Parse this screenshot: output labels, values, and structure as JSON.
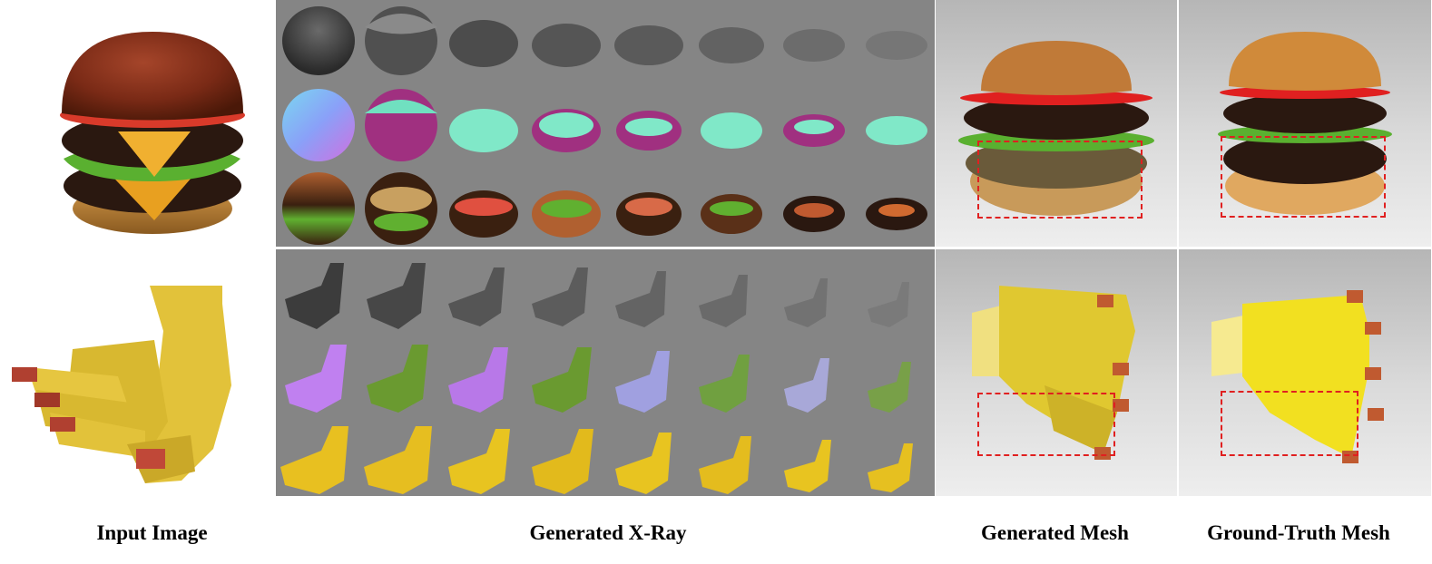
{
  "captions": {
    "input_image": "Input Image",
    "generated_xray": "Generated X-Ray",
    "generated_mesh": "Generated Mesh",
    "ground_truth_mesh": "Ground-Truth Mesh"
  },
  "colors": {
    "xray_background": "#858585",
    "highlight_box": "#e02020",
    "caption_text": "#000000"
  },
  "xray_rows": [
    "depth",
    "normal",
    "color"
  ],
  "xray_layers_per_row": 8
}
